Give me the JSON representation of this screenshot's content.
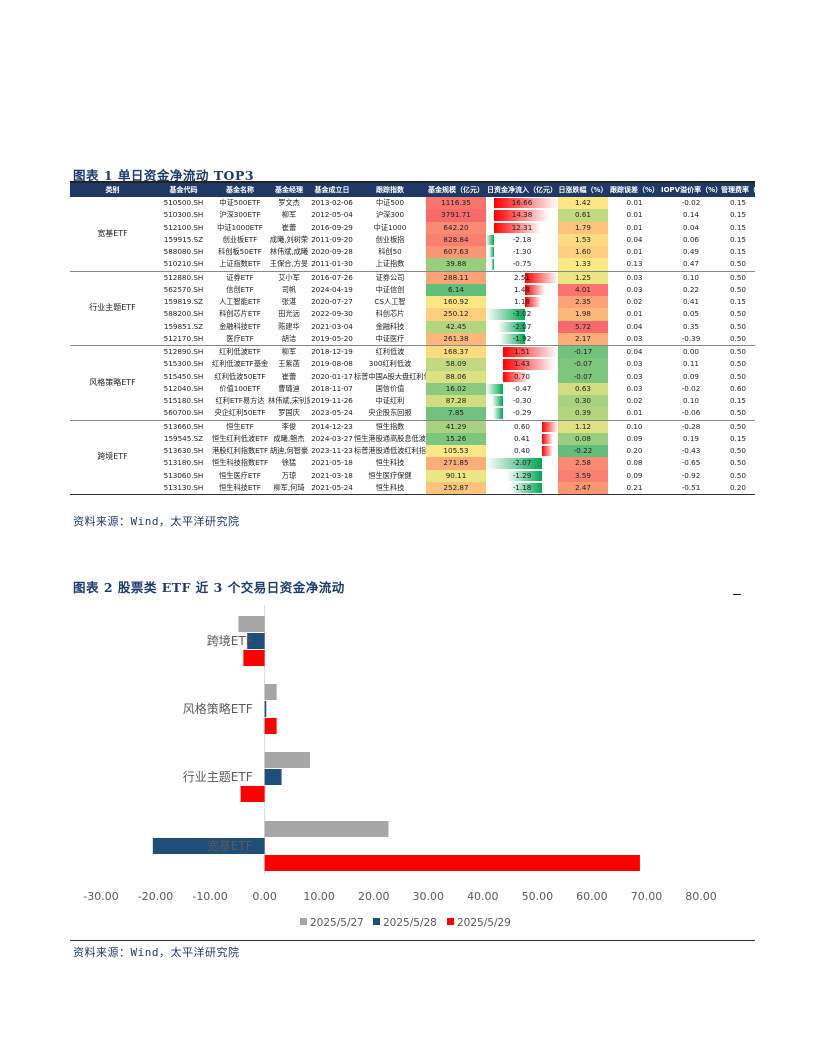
{
  "figure1": {
    "title": "图表 1 单日资金净流动 TOP3",
    "headers": [
      "类别",
      "基金代码",
      "基金名称",
      "基金经理",
      "基金成立日",
      "跟踪指数",
      "基金规模（亿元）",
      "日资金净流入（亿元）",
      "日涨跌幅（%）",
      "跟踪误差（%）",
      "IOPV溢价率（%）",
      "管理费率（%）"
    ],
    "groups": [
      {
        "category": "宽基ETF",
        "rows": [
          [
            "510500.SH",
            "中证500ETF",
            "罗文杰",
            "2013-02-06",
            "中证500",
            "1116.35",
            "16.66",
            "1.42",
            "0.01",
            "-0.02",
            "0.15"
          ],
          [
            "510300.SH",
            "沪深300ETF",
            "柳军",
            "2012-05-04",
            "沪深300",
            "3791.71",
            "14.38",
            "0.61",
            "0.01",
            "0.14",
            "0.15"
          ],
          [
            "512100.SH",
            "中证1000ETF",
            "崔蕾",
            "2016-09-29",
            "中证1000",
            "642.20",
            "12.31",
            "1.79",
            "0.01",
            "0.04",
            "0.15"
          ],
          [
            "159915.SZ",
            "创业板ETF",
            "成曦,刘树荣",
            "2011-09-20",
            "创业板指",
            "828.84",
            "-2.18",
            "1.53",
            "0.04",
            "0.06",
            "0.15"
          ],
          [
            "588080.SH",
            "科创板50ETF",
            "林伟斌,成曦",
            "2020-09-28",
            "科创50",
            "607.63",
            "-1.30",
            "1.60",
            "0.01",
            "0.49",
            "0.15"
          ],
          [
            "510210.SH",
            "上证指数ETF",
            "王保合,方旻",
            "2011-01-30",
            "上证指数",
            "39.88",
            "-0.75",
            "1.33",
            "0.13",
            "0.47",
            "0.50"
          ]
        ]
      },
      {
        "category": "行业主题ETF",
        "rows": [
          [
            "512880.SH",
            "证券ETF",
            "艾小军",
            "2016-07-26",
            "证券公司",
            "288.11",
            "2.51",
            "1.25",
            "0.03",
            "0.10",
            "0.50"
          ],
          [
            "562570.SH",
            "信创ETF",
            "司帆",
            "2024-04-19",
            "中证信创",
            "6.14",
            "1.48",
            "4.01",
            "0.03",
            "0.22",
            "0.50"
          ],
          [
            "159819.SZ",
            "人工智能ETF",
            "张湛",
            "2020-07-27",
            "CS人工智",
            "160.92",
            "1.18",
            "2.35",
            "0.02",
            "0.41",
            "0.15"
          ],
          [
            "588200.SH",
            "科创芯片ETF",
            "田光远",
            "2022-09-30",
            "科创芯片",
            "250.12",
            "-3.02",
            "1.98",
            "0.01",
            "0.05",
            "0.50"
          ],
          [
            "159851.SZ",
            "金融科技ETF",
            "陈建华",
            "2021-03-04",
            "金融科技",
            "42.45",
            "-2.07",
            "5.72",
            "0.04",
            "0.35",
            "0.50"
          ],
          [
            "512170.SH",
            "医疗ETF",
            "胡洁",
            "2019-05-20",
            "中证医疗",
            "261.38",
            "-1.92",
            "2.17",
            "0.03",
            "-0.39",
            "0.50"
          ]
        ]
      },
      {
        "category": "风格策略ETF",
        "rows": [
          [
            "512890.SH",
            "红利低波ETF",
            "柳军",
            "2018-12-19",
            "红利低波",
            "168.37",
            "1.51",
            "-0.17",
            "0.04",
            "0.00",
            "0.50"
          ],
          [
            "515300.SH",
            "红利低波ETF基金",
            "王紫菡",
            "2019-08-08",
            "300红利低波",
            "58.09",
            "1.43",
            "-0.07",
            "0.03",
            "0.11",
            "0.50"
          ],
          [
            "515450.SH",
            "红利低波50ETF",
            "崔蕾",
            "2020-01-17",
            "标普中国A股大盘红利低波50",
            "88.06",
            "0.70",
            "-0.07",
            "0.03",
            "0.09",
            "0.50"
          ],
          [
            "512040.SH",
            "价值100ETF",
            "曹璐迪",
            "2018-11-07",
            "国信价值",
            "16.02",
            "-0.47",
            "0.63",
            "0.03",
            "-0.02",
            "0.60"
          ],
          [
            "515180.SH",
            "红利ETF易方达",
            "林伟斌,宋钊贤",
            "2019-11-26",
            "中证红利",
            "87.28",
            "-0.30",
            "0.30",
            "0.02",
            "0.10",
            "0.15"
          ],
          [
            "560700.SH",
            "央企红利50ETF",
            "罗国庆",
            "2023-05-24",
            "央企股东回报",
            "7.85",
            "-0.29",
            "0.39",
            "0.01",
            "-0.06",
            "0.50"
          ]
        ]
      },
      {
        "category": "跨境ETF",
        "rows": [
          [
            "513660.SH",
            "恒生ETF",
            "李俊",
            "2014-12-23",
            "恒生指数",
            "41.29",
            "0.60",
            "1.12",
            "0.10",
            "-0.28",
            "0.50"
          ],
          [
            "159545.SZ",
            "恒生红利低波ETF",
            "成曦,鲍杰",
            "2024-03-27",
            "恒生港股通高股息低波动",
            "15.26",
            "0.41",
            "0.08",
            "0.09",
            "0.19",
            "0.15"
          ],
          [
            "513630.SH",
            "港股红利指数ETF",
            "胡迪,何智豪",
            "2023-11-23",
            "标普港股通低波红利指数",
            "105.53",
            "0.40",
            "-0.22",
            "0.20",
            "-0.43",
            "0.50"
          ],
          [
            "513180.SH",
            "恒生科技指数ETF",
            "徐猛",
            "2021-05-18",
            "恒生科技",
            "271.85",
            "-2.07",
            "2.58",
            "0.08",
            "-0.65",
            "0.50"
          ],
          [
            "513060.SH",
            "恒生医疗ETF",
            "万琼",
            "2021-03-18",
            "恒生医疗保健",
            "90.11",
            "-1.29",
            "3.59",
            "0.09",
            "-0.92",
            "0.50"
          ],
          [
            "513130.SH",
            "恒生科技ETF",
            "柳军,何琦",
            "2021-05-24",
            "恒生科技",
            "252.87",
            "-1.18",
            "2.47",
            "0.21",
            "-0.51",
            "0.20"
          ]
        ]
      }
    ],
    "colors": {
      "low": "#63BE7B",
      "mid": "#FFEB84",
      "high": "#F8696B",
      "pos_bar": "#FF0000",
      "neg_bar": "#00A651"
    },
    "source": "资料来源：Wind，太平洋研究院"
  },
  "figure2": {
    "title": "图表 2 股票类 ETF 近 3 个交易日资金净流动",
    "source": "资料来源：Wind，太平洋研究院",
    "chart_data": {
      "type": "bar",
      "orientation": "horizontal",
      "categories": [
        "跨境ETF",
        "风格策略ETF",
        "行业主题ETF",
        "宽基ETF"
      ],
      "series": [
        {
          "name": "2025/5/27",
          "color": "#A6A6A6",
          "values": [
            -4.8,
            2.2,
            8.3,
            22.7
          ]
        },
        {
          "name": "2025/5/28",
          "color": "#1F4E79",
          "values": [
            -3.2,
            0.3,
            3.1,
            -20.5
          ]
        },
        {
          "name": "2025/5/29",
          "color": "#FF0000",
          "values": [
            -3.9,
            2.2,
            -4.4,
            68.8
          ]
        }
      ],
      "xlim": [
        -30,
        80
      ],
      "xticks": [
        "-30.00",
        "-20.00",
        "-10.00",
        "0.00",
        "10.00",
        "20.00",
        "30.00",
        "40.00",
        "50.00",
        "60.00",
        "70.00",
        "80.00"
      ],
      "legend": "bottom"
    }
  }
}
